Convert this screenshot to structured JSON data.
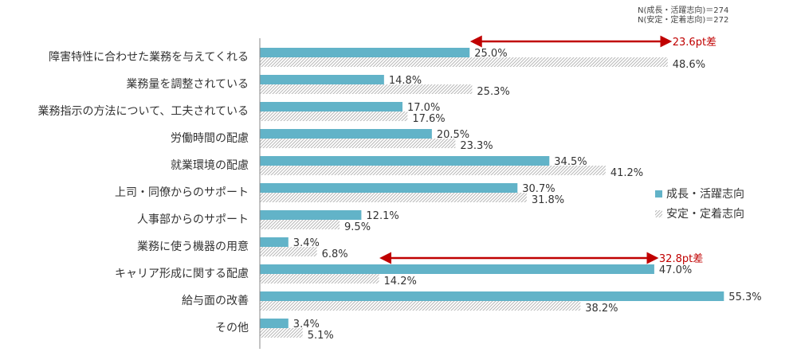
{
  "notes": [
    "N(成長・活躍志向)＝274",
    "N(安定・定着志向)＝272"
  ],
  "chart_data": {
    "type": "bar",
    "orientation": "horizontal",
    "categories": [
      "障害特性に合わせた業務を与えてくれる",
      "業務量を調整されている",
      "業務指示の方法について、工夫されている",
      "労働時間の配慮",
      "就業環境の配慮",
      "上司・同僚からのサポート",
      "人事部からのサポート",
      "業務に使う機器の用意",
      "キャリア形成に関する配慮",
      "給与面の改善",
      "その他"
    ],
    "series": [
      {
        "name": "成長・活躍志向",
        "values": [
          25.0,
          14.8,
          17.0,
          20.5,
          34.5,
          30.7,
          12.1,
          3.4,
          47.0,
          55.3,
          3.4
        ]
      },
      {
        "name": "安定・定着志向",
        "values": [
          48.6,
          25.3,
          17.6,
          23.3,
          41.2,
          31.8,
          9.5,
          6.8,
          14.2,
          38.2,
          5.1
        ]
      }
    ],
    "value_suffix": "%",
    "annotations": [
      {
        "category_index": 0,
        "text": "23.6pt差"
      },
      {
        "category_index": 8,
        "text": "32.8pt差"
      }
    ],
    "legend_position": "right",
    "colors": {
      "series1": "#62b3c8",
      "series2_hatch": "#b8b8b8",
      "arrow": "#c00000",
      "axis": "#888888"
    }
  }
}
